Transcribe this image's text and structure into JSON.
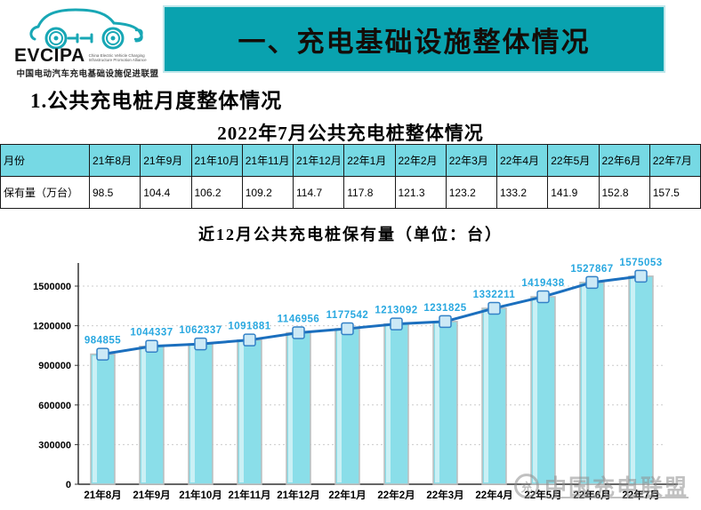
{
  "logo": {
    "acronym": "EVCIPA",
    "tagline": "China Electric Vehicle Charging Infrastructure Promotion Alliance",
    "org_name_cn": "中国电动汽车充电基础设施促进联盟",
    "car_color": "#18A7B5"
  },
  "banner": {
    "title": "一、充电基础设施整体情况",
    "bg_color": "#09A2AF",
    "text_color": "#140d08"
  },
  "section": {
    "heading": "1.公共充电桩月度整体情况"
  },
  "table": {
    "title": "2022年7月公共充电桩整体情况",
    "corner_label": "月份",
    "months": [
      "21年8月",
      "21年9月",
      "21年10月",
      "21年11月",
      "21年12月",
      "22年1月",
      "22年2月",
      "22年3月",
      "22年4月",
      "22年5月",
      "22年6月",
      "22年7月"
    ],
    "row_label": "保有量（万台）",
    "values": [
      "98.5",
      "104.4",
      "106.2",
      "109.2",
      "114.7",
      "117.8",
      "121.3",
      "123.2",
      "133.2",
      "141.9",
      "152.8",
      "157.5"
    ],
    "header_bg": "#76D9E4"
  },
  "chart_data": {
    "type": "bar",
    "title": "近12月公共充电桩保有量（单位：台）",
    "categories": [
      "21年8月",
      "21年9月",
      "21年10月",
      "21年11月",
      "21年12月",
      "22年1月",
      "22年2月",
      "22年3月",
      "22年4月",
      "22年5月",
      "22年6月",
      "22年7月"
    ],
    "values": [
      984855,
      1044337,
      1062337,
      1091881,
      1146956,
      1177542,
      1213092,
      1231825,
      1332211,
      1419438,
      1527867,
      1575053
    ],
    "overlay_line": true,
    "xlabel": "",
    "ylabel": "",
    "ylim": [
      0,
      1500000
    ],
    "yticks": [
      0,
      300000,
      600000,
      900000,
      1200000,
      1500000
    ],
    "grid": "dashed-horizontal",
    "legend": "none",
    "bar_color": "#8ADEE9",
    "bar_edge_color": "#bdbdbd",
    "line_color": "#1B6FBE",
    "marker_fill": "#cce9f6",
    "marker_edge": "#3381c7",
    "value_label_color": "#29A8E0",
    "axis_color": "#333333",
    "grid_color": "#cccccc"
  },
  "watermark": {
    "text": "中国充电联盟",
    "circle_glyph": "充"
  }
}
